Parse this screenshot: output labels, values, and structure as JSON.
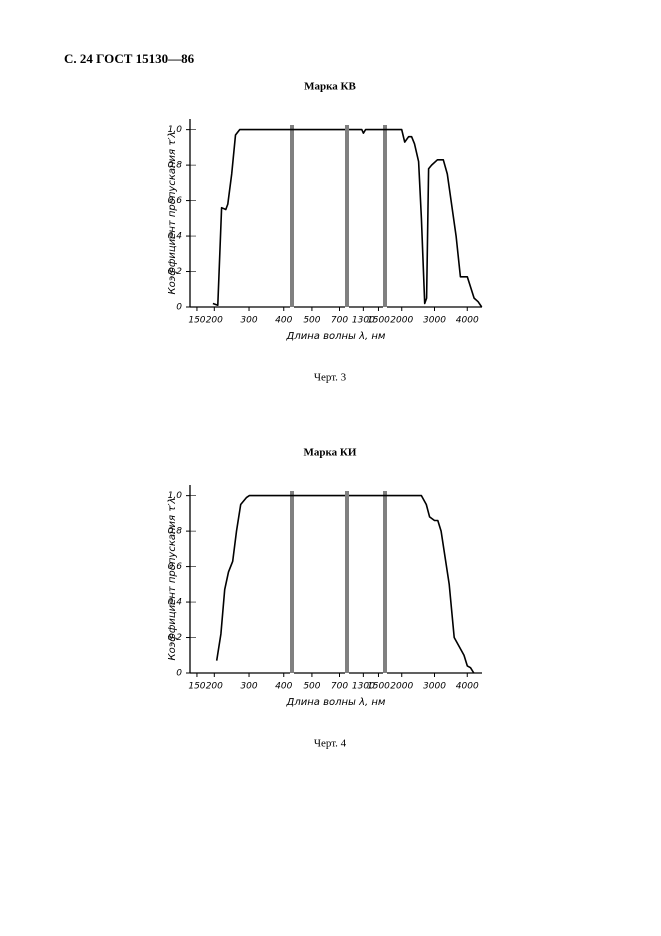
{
  "header": "С. 24 ГОСТ 15130—86",
  "chart_data": [
    {
      "type": "line",
      "title": "Марка КВ",
      "caption": "Черт. 3",
      "xlabel": "Длина волны λ, нм",
      "ylabel": "Коэффициент пропускания τ′λ",
      "xlim_segments": [
        [
          130,
          418
        ],
        [
          370,
          740
        ],
        [
          1110,
          1560
        ],
        [
          1550,
          4450
        ]
      ],
      "ylim": [
        0,
        1.06
      ],
      "yticks": [
        0,
        {
          "value": 0.2,
          "label": "0,2"
        },
        {
          "value": 0.4,
          "label": "0,4"
        },
        {
          "value": 0.6,
          "label": "0,6"
        },
        {
          "value": 0.8,
          "label": "0,8"
        },
        {
          "value": 1.0,
          "label": "1,0"
        }
      ],
      "xticks": [
        150,
        200,
        300,
        400,
        500,
        700,
        1300,
        1500,
        2000,
        3000,
        4000
      ],
      "color": "#000000",
      "x": [
        196,
        210,
        221,
        233,
        239,
        250,
        261,
        273,
        418,
        null,
        370,
        740,
        null,
        1110,
        1280,
        1300,
        1330,
        1560,
        null,
        1550,
        1940,
        2000,
        2090,
        2210,
        2300,
        2390,
        2515,
        2600,
        2700,
        2760,
        2820,
        2910,
        3090,
        3270,
        3390,
        3660,
        3790,
        4000,
        4210,
        4330,
        4440
      ],
      "values": [
        0.02,
        0.01,
        0.56,
        0.55,
        0.58,
        0.75,
        0.97,
        1.0,
        1.0,
        null,
        1.0,
        1.0,
        null,
        1.0,
        1.0,
        0.98,
        1.0,
        1.0,
        null,
        1.0,
        1.0,
        1.0,
        0.93,
        0.96,
        0.96,
        0.92,
        0.82,
        0.5,
        0.02,
        0.05,
        0.78,
        0.8,
        0.83,
        0.83,
        0.75,
        0.4,
        0.17,
        0.17,
        0.05,
        0.03,
        0.0
      ]
    },
    {
      "type": "line",
      "title": "Марка КИ",
      "caption": "Черт. 4",
      "xlabel": "Длина волны λ, нм",
      "ylabel": "Коэффициент пропускания τ′λ",
      "xlim_segments": [
        [
          130,
          418
        ],
        [
          370,
          740
        ],
        [
          1110,
          1560
        ],
        [
          1550,
          4450
        ]
      ],
      "ylim": [
        0,
        1.06
      ],
      "yticks": [
        0,
        {
          "value": 0.2,
          "label": "0,2"
        },
        {
          "value": 0.4,
          "label": "0,4"
        },
        {
          "value": 0.6,
          "label": "0,6"
        },
        {
          "value": 0.8,
          "label": "0,8"
        },
        {
          "value": 1.0,
          "label": "1,0"
        }
      ],
      "xticks": [
        150,
        200,
        300,
        400,
        500,
        700,
        1300,
        1500,
        2000,
        3000,
        4000
      ],
      "color": "#000000",
      "x": [
        207,
        219,
        230,
        241,
        253,
        264,
        276,
        293,
        301,
        418,
        null,
        370,
        740,
        null,
        1110,
        1560,
        null,
        1550,
        2000,
        2600,
        2750,
        2850,
        3000,
        3100,
        3200,
        3450,
        3600,
        3750,
        3900,
        4000,
        4100,
        4200
      ],
      "values": [
        0.07,
        0.22,
        0.47,
        0.57,
        0.63,
        0.8,
        0.95,
        0.99,
        1.0,
        1.0,
        null,
        1.0,
        1.0,
        null,
        1.0,
        1.0,
        null,
        1.0,
        1.0,
        1.0,
        0.95,
        0.88,
        0.86,
        0.86,
        0.8,
        0.5,
        0.2,
        0.15,
        0.1,
        0.04,
        0.03,
        0.0
      ]
    }
  ]
}
